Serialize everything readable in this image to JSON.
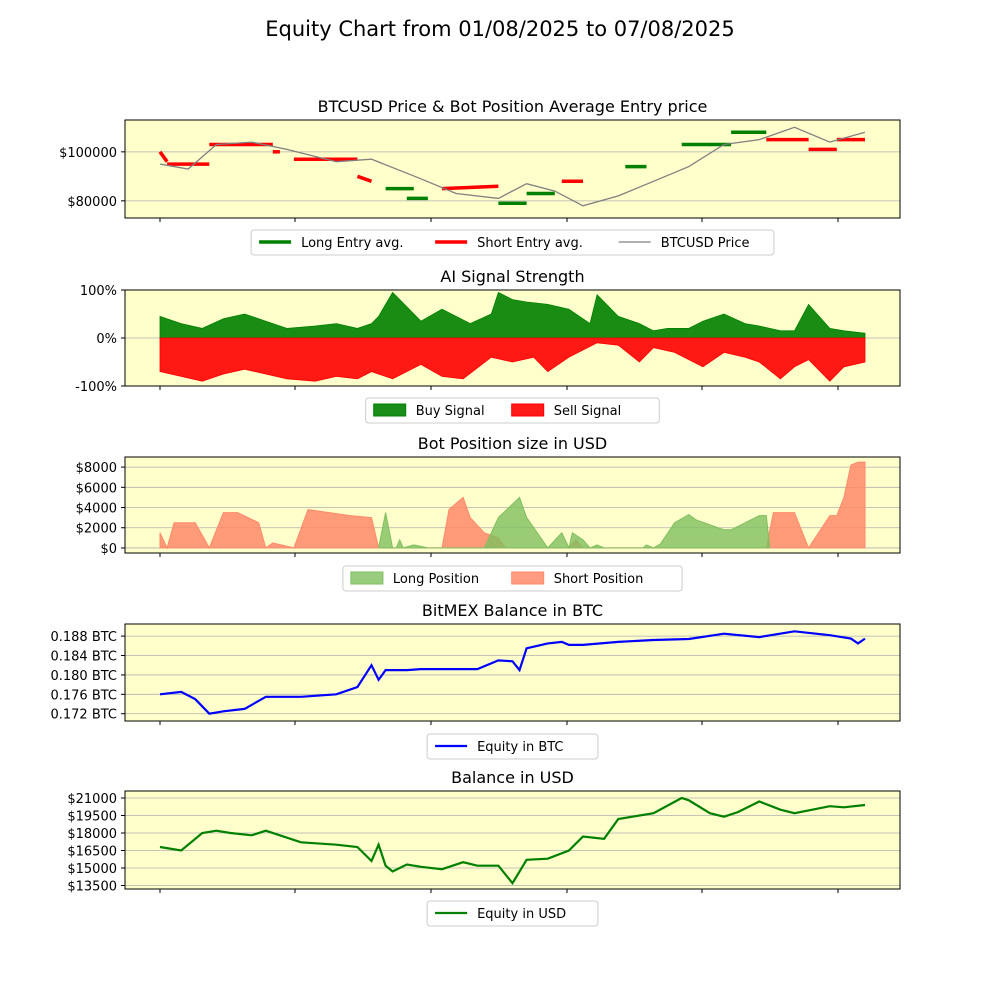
{
  "title": "Equity Chart from 01/08/2025 to 07/08/2025",
  "colors": {
    "plot_bg": "#ffffcc",
    "long": "#008000",
    "short": "#ff0000",
    "price": "#808080",
    "buy": "#008000",
    "sell": "#ff0000",
    "long_pos": "#7fbf5f",
    "short_pos": "#ff8a6a",
    "btc_line": "#0000ff",
    "usd_line": "#008000",
    "grid": "#b0b0b0"
  },
  "chart_data": [
    {
      "type": "line",
      "title": "BTCUSD Price & Bot Position Average Entry price",
      "ylim": [
        73000,
        113000
      ],
      "yticks": [
        80000,
        100000
      ],
      "ytick_labels": [
        "$80000",
        "$100000"
      ],
      "grid": "horizontal",
      "legend": {
        "placement": "below",
        "entries": [
          "Long Entry avg.",
          "Short Entry avg.",
          "BTCUSD Price"
        ]
      },
      "series": [
        {
          "name": "BTCUSD Price",
          "x": [
            0,
            4,
            8,
            13,
            18,
            25,
            30,
            37,
            42,
            48,
            52,
            56,
            60,
            65,
            70,
            75,
            80,
            85,
            90,
            95,
            100
          ],
          "values": [
            95000,
            93000,
            103000,
            104000,
            101000,
            96000,
            97000,
            89000,
            83000,
            81000,
            87000,
            84000,
            78000,
            82000,
            88000,
            94000,
            103000,
            105000,
            110000,
            104000,
            108000
          ]
        },
        {
          "name": "Long Entry avg.",
          "segments": [
            [
              [
                32,
                85000
              ],
              [
                36,
                85000
              ]
            ],
            [
              [
                35,
                81000
              ],
              [
                38,
                81000
              ]
            ],
            [
              [
                48,
                79000
              ],
              [
                52,
                79000
              ]
            ],
            [
              [
                52,
                83000
              ],
              [
                56,
                83000
              ]
            ],
            [
              [
                66,
                94000
              ],
              [
                69,
                94000
              ]
            ],
            [
              [
                74,
                103000
              ],
              [
                81,
                103000
              ]
            ],
            [
              [
                81,
                108000
              ],
              [
                86,
                108000
              ]
            ]
          ]
        },
        {
          "name": "Short Entry avg.",
          "segments": [
            [
              [
                0,
                100000
              ],
              [
                1,
                96000
              ]
            ],
            [
              [
                1,
                95000
              ],
              [
                7,
                95000
              ]
            ],
            [
              [
                7,
                103000
              ],
              [
                16,
                103000
              ]
            ],
            [
              [
                16,
                100000
              ],
              [
                17,
                100000
              ]
            ],
            [
              [
                19,
                97000
              ],
              [
                28,
                97000
              ]
            ],
            [
              [
                28,
                90000
              ],
              [
                30,
                88000
              ]
            ],
            [
              [
                40,
                85000
              ],
              [
                48,
                86000
              ]
            ],
            [
              [
                57,
                88000
              ],
              [
                60,
                88000
              ]
            ],
            [
              [
                86,
                105000
              ],
              [
                92,
                105000
              ]
            ],
            [
              [
                92,
                101000
              ],
              [
                96,
                101000
              ]
            ],
            [
              [
                96,
                105000
              ],
              [
                100,
                105000
              ]
            ]
          ]
        }
      ]
    },
    {
      "type": "area",
      "title": "AI Signal Strength",
      "ylim": [
        -100,
        100
      ],
      "yticks": [
        -100,
        0,
        100
      ],
      "ytick_labels": [
        "-100%",
        "0%",
        "100%"
      ],
      "grid": "zero-line",
      "legend": {
        "placement": "below",
        "entries": [
          "Buy Signal",
          "Sell Signal"
        ]
      },
      "series": [
        {
          "name": "Buy Signal",
          "x": [
            0,
            3,
            6,
            9,
            12,
            15,
            18,
            22,
            25,
            28,
            30,
            31,
            33,
            37,
            40,
            44,
            47,
            48,
            50,
            52,
            55,
            58,
            61,
            62,
            65,
            68,
            70,
            72,
            75,
            77,
            80,
            83,
            85,
            88,
            90,
            92,
            95,
            97,
            100
          ],
          "values": [
            45,
            30,
            20,
            40,
            50,
            35,
            20,
            25,
            30,
            20,
            30,
            45,
            95,
            35,
            60,
            30,
            50,
            95,
            80,
            75,
            70,
            60,
            30,
            90,
            45,
            30,
            15,
            20,
            20,
            35,
            50,
            30,
            25,
            15,
            15,
            70,
            20,
            15,
            10
          ]
        },
        {
          "name": "Sell Signal",
          "x": [
            0,
            3,
            6,
            9,
            12,
            15,
            18,
            22,
            25,
            28,
            30,
            33,
            37,
            40,
            43,
            47,
            50,
            53,
            55,
            58,
            62,
            65,
            68,
            70,
            73,
            77,
            80,
            83,
            85,
            88,
            90,
            92,
            95,
            97,
            100
          ],
          "values": [
            -70,
            -80,
            -90,
            -75,
            -65,
            -75,
            -85,
            -90,
            -80,
            -85,
            -70,
            -85,
            -55,
            -80,
            -85,
            -40,
            -50,
            -40,
            -70,
            -40,
            -10,
            -15,
            -50,
            -20,
            -30,
            -60,
            -30,
            -40,
            -50,
            -85,
            -60,
            -45,
            -90,
            -60,
            -50
          ]
        }
      ]
    },
    {
      "type": "area",
      "title": "Bot Position size in USD",
      "ylim": [
        -500,
        9000
      ],
      "yticks": [
        0,
        2000,
        4000,
        6000,
        8000
      ],
      "ytick_labels": [
        "$0",
        "$2000",
        "$4000",
        "$6000",
        "$8000"
      ],
      "grid": "horizontal",
      "legend": {
        "placement": "below",
        "entries": [
          "Long Position",
          "Short Position"
        ]
      },
      "series": [
        {
          "name": "Short Position",
          "x": [
            0,
            1,
            2,
            5,
            7,
            9,
            11,
            14,
            15,
            16,
            19,
            21,
            24,
            27,
            30,
            31,
            40,
            41,
            43,
            44,
            46,
            48,
            49,
            58,
            59,
            60,
            86,
            87,
            90,
            92,
            95,
            96,
            97,
            98,
            99,
            100
          ],
          "values": [
            1500,
            0,
            2500,
            2500,
            0,
            3500,
            3500,
            2500,
            0,
            500,
            0,
            3800,
            3500,
            3200,
            3000,
            0,
            0,
            3800,
            5000,
            3000,
            1500,
            1000,
            0,
            0,
            800,
            0,
            0,
            3500,
            3500,
            0,
            3200,
            3200,
            5000,
            8200,
            8500,
            8500
          ]
        },
        {
          "name": "Long Position",
          "x": [
            31,
            32,
            33,
            33.5,
            34,
            34.5,
            36,
            38,
            46,
            48,
            51,
            52,
            53,
            55,
            57,
            58,
            58.5,
            60,
            61,
            62,
            63,
            64,
            65,
            68.5,
            69,
            70,
            71,
            73,
            75,
            76,
            80,
            81,
            85,
            86,
            86.5
          ],
          "values": [
            0,
            3500,
            0,
            0,
            800,
            0,
            300,
            0,
            0,
            3000,
            5000,
            3000,
            2000,
            0,
            1500,
            0,
            1500,
            800,
            0,
            300,
            0,
            0,
            0,
            0,
            300,
            0,
            400,
            2500,
            3300,
            2800,
            1800,
            1800,
            3200,
            3200,
            0
          ]
        }
      ]
    },
    {
      "type": "line",
      "title": "BitMEX Balance in BTC",
      "ylim": [
        0.1705,
        0.1905
      ],
      "yticks": [
        0.172,
        0.176,
        0.18,
        0.184,
        0.188
      ],
      "ytick_labels": [
        "0.172 BTC",
        "0.176 BTC",
        "0.180 BTC",
        "0.184 BTC",
        "0.188 BTC"
      ],
      "grid": "horizontal",
      "legend": {
        "placement": "below",
        "entries": [
          "Equity in BTC"
        ]
      },
      "series": [
        {
          "name": "Equity in BTC",
          "x": [
            0,
            3,
            5,
            7,
            9,
            12,
            15,
            20,
            25,
            28,
            30,
            31,
            32,
            33,
            35,
            37,
            40,
            45,
            48,
            50,
            51,
            52,
            55,
            57,
            58,
            60,
            65,
            70,
            75,
            80,
            85,
            90,
            95,
            98,
            99,
            100
          ],
          "values": [
            0.176,
            0.1765,
            0.175,
            0.172,
            0.1725,
            0.173,
            0.1755,
            0.1755,
            0.176,
            0.1775,
            0.182,
            0.179,
            0.181,
            0.181,
            0.181,
            0.1812,
            0.1812,
            0.1812,
            0.183,
            0.1828,
            0.181,
            0.1855,
            0.1865,
            0.1868,
            0.1862,
            0.1862,
            0.1868,
            0.1872,
            0.1874,
            0.1885,
            0.1878,
            0.189,
            0.1882,
            0.1875,
            0.1865,
            0.1875
          ]
        }
      ]
    },
    {
      "type": "line",
      "title": "Balance in USD",
      "ylim": [
        13200,
        21600
      ],
      "yticks": [
        13500,
        15000,
        16500,
        18000,
        19500,
        21000
      ],
      "ytick_labels": [
        "$13500",
        "$15000",
        "$16500",
        "$18000",
        "$19500",
        "$21000"
      ],
      "grid": "horizontal",
      "legend": {
        "placement": "below",
        "entries": [
          "Equity in USD"
        ]
      },
      "series": [
        {
          "name": "Equity in USD",
          "x": [
            0,
            3,
            6,
            8,
            10,
            13,
            15,
            20,
            25,
            28,
            30,
            31,
            32,
            33,
            35,
            37,
            40,
            43,
            45,
            48,
            50,
            52,
            55,
            58,
            60,
            63,
            65,
            67,
            70,
            74,
            75,
            78,
            80,
            82,
            85,
            88,
            90,
            95,
            97,
            100
          ],
          "values": [
            16800,
            16500,
            18000,
            18200,
            18000,
            17800,
            18200,
            17200,
            17000,
            16800,
            15600,
            17000,
            15200,
            14700,
            15300,
            15100,
            14900,
            15500,
            15200,
            15200,
            13700,
            15700,
            15800,
            16500,
            17700,
            17500,
            19200,
            19400,
            19700,
            21000,
            20800,
            19700,
            19400,
            19800,
            20700,
            20000,
            19700,
            20300,
            20200,
            20400
          ]
        }
      ]
    }
  ]
}
